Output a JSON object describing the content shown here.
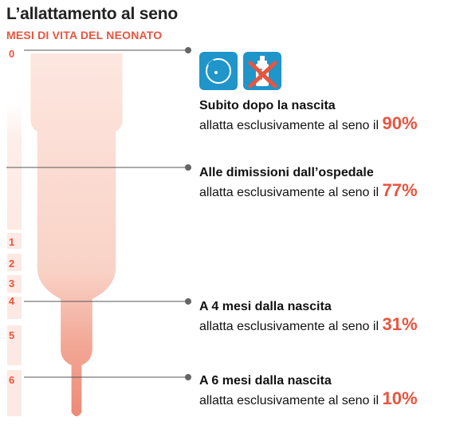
{
  "title": "L’allattamento al seno",
  "subtitle": "MESI DI VITA DEL NEONATO",
  "icons": {
    "breast": "breast-icon",
    "no_bottle": "no-bottle-icon",
    "accent": "#1f95c9",
    "cross": "#e8553e"
  },
  "colors": {
    "accent": "#e8553e",
    "shape_light": "#fbe2da",
    "shape_dark": "#f2b4a5"
  },
  "chart_data": {
    "type": "area",
    "title": "L’allattamento al seno",
    "subtitle": "MESI DI VITA DEL NEONATO",
    "axis_ticks": [
      "0",
      "1",
      "2",
      "3",
      "4",
      "5",
      "6"
    ],
    "points": [
      {
        "month": 0,
        "label": "Subito dopo la nascita",
        "text": "allatta esclusivamente al seno il",
        "value": 90,
        "value_label": "90%"
      },
      {
        "month": 0.5,
        "label": "Alle dimissioni dall’ospedale",
        "text": "allatta esclusivamente al seno il",
        "value": 77,
        "value_label": "77%"
      },
      {
        "month": 4,
        "label": "A 4 mesi dalla nascita",
        "text": "allatta  esclusivamente al seno il",
        "value": 31,
        "value_label": "31%"
      },
      {
        "month": 6,
        "label": "A 6 mesi dalla nascita",
        "text": "allatta esclusivamente al seno il",
        "value": 10,
        "value_label": "10%"
      }
    ]
  }
}
